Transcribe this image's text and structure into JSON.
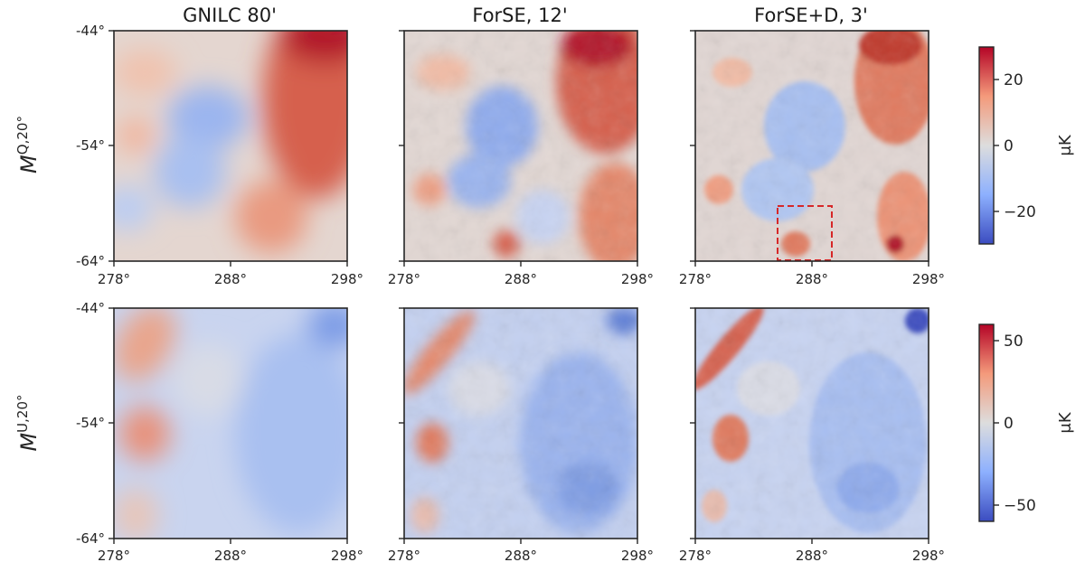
{
  "figure": {
    "columns": [
      {
        "title": "GNILC 80'"
      },
      {
        "title": "ForSE, 12'"
      },
      {
        "title": "ForSE+D, 3'"
      }
    ],
    "rows": [
      {
        "label_base": "M",
        "label_sup": "Q,20°"
      },
      {
        "label_base": "M",
        "label_sup": "U,20°"
      }
    ],
    "x_ticks": [
      "278°",
      "288°",
      "298°"
    ],
    "y_ticks": [
      "-44°",
      "-54°",
      "-64°"
    ],
    "colorbars": [
      {
        "unit": "μK",
        "ticks": [
          "20",
          "0",
          "−20"
        ],
        "range": [
          -30,
          30
        ]
      },
      {
        "unit": "μK",
        "ticks": [
          "50",
          "0",
          "−50"
        ],
        "range": [
          -60,
          60
        ]
      }
    ],
    "colormap": {
      "low": "#3b4cc0",
      "mid": "#dddddd",
      "high": "#b40426"
    },
    "highlight_box_color": "#d62728"
  }
}
